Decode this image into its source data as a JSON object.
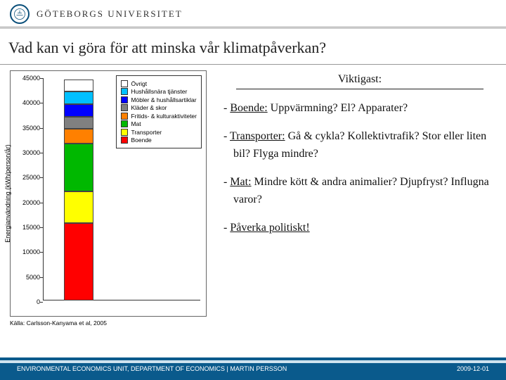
{
  "header": {
    "university": "GÖTEBORGS UNIVERSITET"
  },
  "title": "Vad kan vi göra för att minska vår klimatpåverkan?",
  "chart": {
    "type": "stacked-bar",
    "ylabel": "Energianvändning (kWh/person/år)",
    "ylim": [
      0,
      45000
    ],
    "ytick_step": 5000,
    "yticks": [
      "0",
      "5000",
      "10000",
      "15000",
      "20000",
      "25000",
      "30000",
      "35000",
      "40000",
      "45000"
    ],
    "bar_total": 44500,
    "segments": [
      {
        "key": "boende",
        "value": 15500,
        "color": "#ff0000"
      },
      {
        "key": "transporter",
        "value": 6500,
        "color": "#ffff00"
      },
      {
        "key": "mat",
        "value": 9500,
        "color": "#00b800"
      },
      {
        "key": "fritids",
        "value": 3000,
        "color": "#ff8000"
      },
      {
        "key": "klader",
        "value": 2500,
        "color": "#808080"
      },
      {
        "key": "mobler",
        "value": 2500,
        "color": "#0000ff"
      },
      {
        "key": "hushall",
        "value": 2500,
        "color": "#00c0ff"
      },
      {
        "key": "ovrigt",
        "value": 2500,
        "color": "#ffffff"
      }
    ],
    "legend": [
      {
        "label": "Övrigt",
        "color": "#ffffff"
      },
      {
        "label": "Hushållsnära tjänster",
        "color": "#00c0ff"
      },
      {
        "label": "Möbler & hushållsartiklar",
        "color": "#0000ff"
      },
      {
        "label": "Kläder & skor",
        "color": "#808080"
      },
      {
        "label": "Fritids- & kulturaktiviteter",
        "color": "#ff8000"
      },
      {
        "label": "Mat",
        "color": "#00b800"
      },
      {
        "label": "Transporter",
        "color": "#ffff00"
      },
      {
        "label": "Boende",
        "color": "#ff0000"
      }
    ],
    "source": "Källa: Carlsson-Kanyama et al, 2005"
  },
  "right": {
    "heading": "Viktigast:",
    "bullets": [
      {
        "u": "Boende:",
        "rest": " Uppvärmning? El? Apparater?"
      },
      {
        "u": "Transporter:",
        "rest": " Gå & cykla? Kollektivtrafik? Stor eller liten bil? Flyga mindre?"
      },
      {
        "u": "Mat:",
        "rest": " Mindre kött & andra animalier? Djupfryst? Influgna varor?"
      },
      {
        "u": "Påverka politiskt!",
        "rest": ""
      }
    ]
  },
  "footer": {
    "left": "ENVIRONMENTAL ECONOMICS UNIT, DEPARTMENT OF ECONOMICS  |  MARTIN PERSSON",
    "right": "2009-12-01"
  }
}
